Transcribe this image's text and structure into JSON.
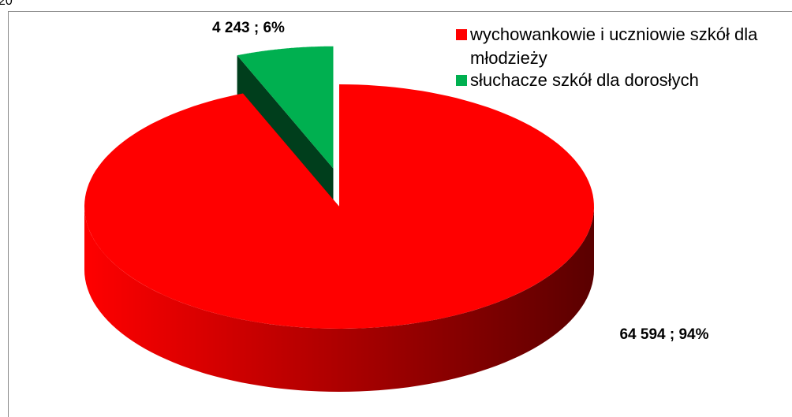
{
  "chart_data": {
    "type": "pie",
    "title": "20",
    "categories": [
      "wychowankowie i uczniowie szkół dla młodzieży",
      "słuchacze szkół dla dorosłych"
    ],
    "values": [
      64594,
      4243
    ],
    "value_labels": [
      "64 594 ; 94%",
      "4 243 ; 6%"
    ],
    "colors": [
      "#ff0000",
      "#00b050"
    ],
    "legend": "top-right"
  }
}
